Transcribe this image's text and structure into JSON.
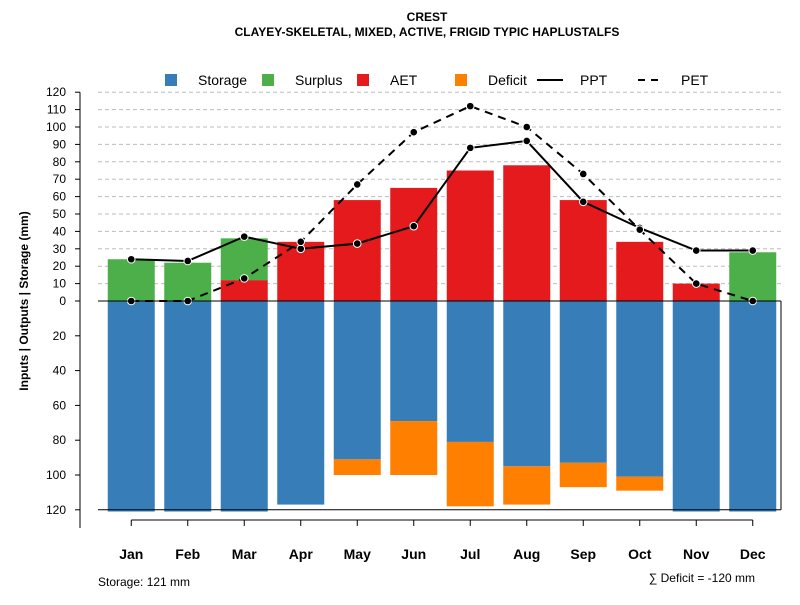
{
  "chart_data": {
    "type": "bar",
    "title": "CREST",
    "subtitle": "CLAYEY-SKELETAL, MIXED, ACTIVE, FRIGID TYPIC HAPLUSTALFS",
    "ylabel": "Inputs | Outputs | Storage     (mm)",
    "categories": [
      "Jan",
      "Feb",
      "Mar",
      "Apr",
      "May",
      "Jun",
      "Jul",
      "Aug",
      "Sep",
      "Oct",
      "Nov",
      "Dec"
    ],
    "upper_ylim": [
      0,
      120
    ],
    "upper_ticks": [
      "0",
      "10",
      "20",
      "30",
      "40",
      "50",
      "60",
      "70",
      "80",
      "90",
      "100",
      "110",
      "120"
    ],
    "lower_ylim": [
      0,
      120
    ],
    "lower_ticks": [
      "20",
      "40",
      "60",
      "80",
      "100",
      "120"
    ],
    "series": [
      {
        "name": "Storage",
        "type": "bar",
        "direction": "down",
        "color": "#377EB8",
        "values": [
          121,
          121,
          121,
          117,
          91,
          69,
          81,
          95,
          93,
          101,
          121,
          121
        ]
      },
      {
        "name": "Deficit",
        "type": "bar",
        "direction": "down",
        "color": "#FF7F00",
        "values": [
          0,
          0,
          0,
          0,
          9,
          31,
          37,
          22,
          14,
          8,
          0,
          0
        ]
      },
      {
        "name": "AET",
        "type": "bar",
        "direction": "up",
        "color": "#E41A1C",
        "values": [
          0,
          0,
          12,
          34,
          58,
          65,
          75,
          78,
          58,
          34,
          10,
          0
        ]
      },
      {
        "name": "Surplus",
        "type": "bar",
        "direction": "up",
        "color": "#4DAF4A",
        "values": [
          24,
          22,
          24,
          0,
          0,
          0,
          0,
          0,
          0,
          0,
          0,
          28
        ]
      },
      {
        "name": "PPT",
        "type": "line",
        "style": "solid",
        "color": "#000000",
        "values": [
          24,
          23,
          37,
          30,
          33,
          43,
          88,
          92,
          57,
          42,
          29,
          29
        ]
      },
      {
        "name": "PET",
        "type": "line",
        "style": "dashed",
        "color": "#000000",
        "values": [
          0,
          0,
          13,
          34,
          67,
          97,
          112,
          100,
          73,
          41,
          10,
          0
        ]
      }
    ],
    "legend": [
      {
        "label": "Storage",
        "kind": "box",
        "color": "#377EB8"
      },
      {
        "label": "Surplus",
        "kind": "box",
        "color": "#4DAF4A"
      },
      {
        "label": "AET",
        "kind": "box",
        "color": "#E41A1C"
      },
      {
        "label": "Deficit",
        "kind": "box",
        "color": "#FF7F00"
      },
      {
        "label": "PPT",
        "kind": "line",
        "style": "solid"
      },
      {
        "label": "PET",
        "kind": "line",
        "style": "dashed"
      }
    ],
    "legend_position": "top",
    "grid": true
  },
  "footer": {
    "storage_text": "Storage: 121 mm",
    "deficit_text": "∑ Deficit = -120 mm"
  }
}
